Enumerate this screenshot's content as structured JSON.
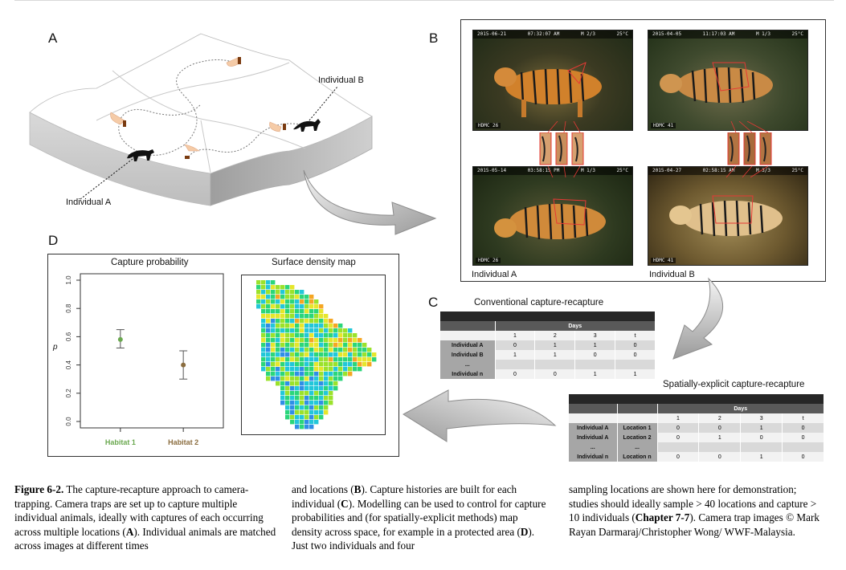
{
  "panels": {
    "a": {
      "letter": "A",
      "individual_a": "Individual A",
      "individual_b": "Individual B"
    },
    "b": {
      "letter": "B",
      "photos": [
        {
          "date": "2015-06-21",
          "time": "07:32:07 AM",
          "frame": "M 2/3",
          "temp": "25°C",
          "cam": "HDMC 26"
        },
        {
          "date": "2015-04-05",
          "time": "11:17:03 AM",
          "frame": "M 1/3",
          "temp": "25°C",
          "cam": "HDMC 41"
        },
        {
          "date": "2015-05-14",
          "time": "03:58:15 PM",
          "frame": "M 1/3",
          "temp": "25°C",
          "cam": "HDMC 26"
        },
        {
          "date": "2015-04-27",
          "time": "02:58:15 AM",
          "frame": "M 3/3",
          "temp": "25°C",
          "cam": "HDMC 41"
        }
      ],
      "label_a": "Individual A",
      "label_b": "Individual B"
    },
    "c": {
      "letter": "C",
      "conventional": {
        "title": "Conventional capture-recapture",
        "days_label": "Days",
        "day_headers": [
          "1",
          "2",
          "3",
          "t"
        ],
        "rows": [
          {
            "label": "Individual A",
            "values": [
              "0",
              "1",
              "1",
              "0"
            ]
          },
          {
            "label": "Individual B",
            "values": [
              "1",
              "1",
              "0",
              "0"
            ]
          },
          {
            "label": "...",
            "values": [
              "",
              "",
              "",
              ""
            ]
          },
          {
            "label": "Individual n",
            "values": [
              "0",
              "0",
              "1",
              "1"
            ]
          }
        ]
      },
      "spatial": {
        "title": "Spatially-explicit capture-recapture",
        "days_label": "Days",
        "day_headers": [
          "1",
          "2",
          "3",
          "t"
        ],
        "rows": [
          {
            "label": "Individual A",
            "location": "Location 1",
            "values": [
              "0",
              "0",
              "1",
              "0"
            ]
          },
          {
            "label": "Individual A",
            "location": "Location 2",
            "values": [
              "0",
              "1",
              "0",
              "0"
            ]
          },
          {
            "label": "...",
            "location": "...",
            "values": [
              "",
              "",
              "",
              ""
            ]
          },
          {
            "label": "Individual n",
            "location": "Location n",
            "values": [
              "0",
              "0",
              "1",
              "0"
            ]
          }
        ]
      }
    },
    "d": {
      "letter": "D",
      "left_title": "Capture probability",
      "right_title": "Surface density map",
      "y_axis_label": "p",
      "y_ticks": [
        "0.0",
        "0.2",
        "0.4",
        "0.6",
        "0.8",
        "1.0"
      ]
    }
  },
  "chart_data": {
    "type": "scatter",
    "title": "Capture probability",
    "ylabel": "p",
    "ylim": [
      0,
      1
    ],
    "categories": [
      "Habitat 1",
      "Habitat 2"
    ],
    "values": [
      0.58,
      0.4
    ],
    "error_low": [
      0.52,
      0.3
    ],
    "error_high": [
      0.65,
      0.5
    ],
    "colors": [
      "#6aa84f",
      "#8b6d3f"
    ]
  },
  "caption": {
    "col1": {
      "fig_label": "Figure 6-2.",
      "text": " The capture-recapture approach to camera-trapping. Camera traps are set up to capture multiple individual animals, ideally with captures of each occurring across multiple locations (",
      "ref1": "A",
      "text2": "). Individual animals are matched across images at different times"
    },
    "col2": {
      "text1": "and locations (",
      "ref1": "B",
      "text2": "). Capture histories are built for each individual (",
      "ref2": "C",
      "text3": "). Modelling can be used to control for capture probabilities and (for spatially-explicit methods) map density across space, for example in a protected area (",
      "ref3": "D",
      "text4": "). Just two individuals and four"
    },
    "col3": {
      "text1": "sampling locations are shown here for demonstration; studies should ideally sample > 40 locations and capture > 10 individuals (",
      "ref1": "Chapter 7-7",
      "text2": "). Camera trap images © Mark Rayan Darmaraj/Christopher Wong/ WWF-Malaysia."
    }
  },
  "colors": {
    "habitat1": "#6aa84f",
    "habitat2": "#8b6d3f",
    "trap_cone": "#f5cba7",
    "table_dark": "#262626",
    "table_mid": "#595959"
  }
}
